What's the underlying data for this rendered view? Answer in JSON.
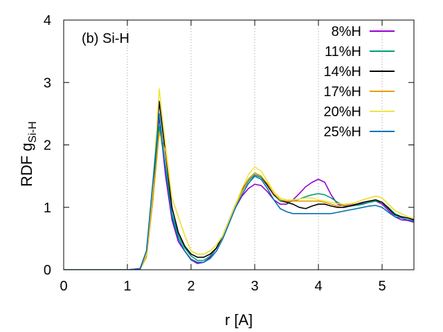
{
  "chart_data": {
    "type": "line",
    "xlabel": "r  [A]",
    "ylabel_main": "RDF  g",
    "ylabel_sub": "Si-H",
    "annotation": "(b) Si-H",
    "xlim": [
      0,
      5.5
    ],
    "ylim": [
      0,
      4
    ],
    "x_ticks": [
      0,
      1,
      2,
      3,
      4,
      5
    ],
    "y_ticks": [
      0,
      1,
      2,
      3,
      4
    ],
    "x_tick_labels": [
      "0",
      "1",
      "2",
      "3",
      "4",
      "5"
    ],
    "y_tick_labels": [
      "0",
      "1",
      "2",
      "3",
      "4"
    ],
    "vertical_gridlines_at": [
      1,
      2,
      3,
      4,
      5
    ],
    "legend_position": "top-right",
    "series": [
      {
        "name": "8%H",
        "color": "#9400d3",
        "x": [
          0,
          1.0,
          1.2,
          1.3,
          1.4,
          1.5,
          1.6,
          1.7,
          1.8,
          1.9,
          2.0,
          2.1,
          2.2,
          2.3,
          2.4,
          2.5,
          2.6,
          2.7,
          2.8,
          2.9,
          3.0,
          3.1,
          3.2,
          3.3,
          3.4,
          3.5,
          3.6,
          3.7,
          3.8,
          3.9,
          4.0,
          4.1,
          4.2,
          4.3,
          4.4,
          4.5,
          4.6,
          4.7,
          4.8,
          4.9,
          5.0,
          5.1,
          5.2,
          5.3,
          5.4,
          5.5
        ],
        "y": [
          0,
          0,
          0.02,
          0.3,
          1.3,
          2.45,
          1.5,
          0.8,
          0.45,
          0.3,
          0.16,
          0.1,
          0.12,
          0.2,
          0.35,
          0.55,
          0.78,
          1.0,
          1.18,
          1.3,
          1.37,
          1.35,
          1.25,
          1.12,
          1.05,
          1.05,
          1.12,
          1.22,
          1.33,
          1.4,
          1.45,
          1.4,
          1.2,
          1.05,
          1.02,
          1.03,
          1.05,
          1.06,
          1.08,
          1.1,
          1.05,
          0.95,
          0.85,
          0.8,
          0.79,
          0.76
        ]
      },
      {
        "name": "11%H",
        "color": "#009e73",
        "x": [
          0,
          1.0,
          1.2,
          1.3,
          1.4,
          1.5,
          1.6,
          1.7,
          1.8,
          1.9,
          2.0,
          2.1,
          2.2,
          2.3,
          2.4,
          2.5,
          2.6,
          2.7,
          2.8,
          2.9,
          3.0,
          3.1,
          3.2,
          3.3,
          3.4,
          3.5,
          3.6,
          3.7,
          3.8,
          3.9,
          4.0,
          4.1,
          4.2,
          4.3,
          4.4,
          4.5,
          4.6,
          4.7,
          4.8,
          4.9,
          5.0,
          5.1,
          5.2,
          5.3,
          5.4,
          5.5
        ],
        "y": [
          0,
          0,
          0.01,
          0.25,
          1.2,
          2.3,
          1.65,
          0.9,
          0.55,
          0.35,
          0.22,
          0.15,
          0.15,
          0.22,
          0.35,
          0.55,
          0.8,
          1.05,
          1.25,
          1.42,
          1.52,
          1.48,
          1.35,
          1.2,
          1.1,
          1.08,
          1.1,
          1.13,
          1.17,
          1.2,
          1.22,
          1.2,
          1.15,
          1.08,
          1.03,
          1.02,
          1.03,
          1.05,
          1.08,
          1.1,
          1.08,
          1.0,
          0.9,
          0.85,
          0.83,
          0.8
        ]
      },
      {
        "name": "14%H",
        "color": "#000000",
        "x": [
          0,
          1.0,
          1.2,
          1.3,
          1.4,
          1.5,
          1.6,
          1.7,
          1.8,
          1.9,
          2.0,
          2.1,
          2.2,
          2.3,
          2.4,
          2.5,
          2.6,
          2.7,
          2.8,
          2.9,
          3.0,
          3.1,
          3.2,
          3.3,
          3.4,
          3.5,
          3.6,
          3.7,
          3.8,
          3.9,
          4.0,
          4.1,
          4.2,
          4.3,
          4.4,
          4.5,
          4.6,
          4.7,
          4.8,
          4.9,
          5.0,
          5.1,
          5.2,
          5.3,
          5.4,
          5.5
        ],
        "y": [
          0,
          0,
          0.01,
          0.25,
          1.3,
          2.7,
          1.85,
          1.0,
          0.6,
          0.38,
          0.25,
          0.2,
          0.2,
          0.25,
          0.35,
          0.55,
          0.8,
          1.05,
          1.27,
          1.45,
          1.55,
          1.5,
          1.35,
          1.2,
          1.12,
          1.08,
          1.05,
          1.0,
          0.98,
          1.02,
          1.05,
          1.05,
          1.02,
          1.0,
          1.0,
          1.02,
          1.05,
          1.08,
          1.1,
          1.12,
          1.08,
          0.98,
          0.88,
          0.85,
          0.83,
          0.8
        ]
      },
      {
        "name": "17%H",
        "color": "#e69f00",
        "x": [
          0,
          1.0,
          1.2,
          1.3,
          1.4,
          1.5,
          1.6,
          1.7,
          1.8,
          1.9,
          2.0,
          2.1,
          2.2,
          2.3,
          2.4,
          2.5,
          2.6,
          2.7,
          2.8,
          2.9,
          3.0,
          3.1,
          3.2,
          3.3,
          3.4,
          3.5,
          3.6,
          3.7,
          3.8,
          3.9,
          4.0,
          4.1,
          4.2,
          4.3,
          4.4,
          4.5,
          4.6,
          4.7,
          4.8,
          4.9,
          5.0,
          5.1,
          5.2,
          5.3,
          5.4,
          5.5
        ],
        "y": [
          0,
          0,
          0.01,
          0.2,
          1.1,
          2.2,
          1.9,
          1.15,
          0.85,
          0.55,
          0.3,
          0.25,
          0.25,
          0.3,
          0.4,
          0.55,
          0.78,
          1.02,
          1.25,
          1.45,
          1.55,
          1.5,
          1.38,
          1.22,
          1.12,
          1.1,
          1.1,
          1.1,
          1.1,
          1.1,
          1.1,
          1.08,
          1.05,
          1.02,
          1.03,
          1.05,
          1.08,
          1.12,
          1.15,
          1.18,
          1.15,
          1.05,
          0.95,
          0.9,
          0.85,
          0.82
        ]
      },
      {
        "name": "20%H",
        "color": "#f0e442",
        "x": [
          0,
          1.0,
          1.2,
          1.3,
          1.4,
          1.5,
          1.6,
          1.7,
          1.8,
          1.9,
          2.0,
          2.1,
          2.2,
          2.3,
          2.4,
          2.5,
          2.6,
          2.7,
          2.8,
          2.9,
          3.0,
          3.1,
          3.2,
          3.3,
          3.4,
          3.5,
          3.6,
          3.7,
          3.8,
          3.9,
          4.0,
          4.1,
          4.2,
          4.3,
          4.4,
          4.5,
          4.6,
          4.7,
          4.8,
          4.9,
          5.0,
          5.1,
          5.2,
          5.3,
          5.4,
          5.5
        ],
        "y": [
          0,
          0,
          0.01,
          0.25,
          1.3,
          2.9,
          2.0,
          1.15,
          0.85,
          0.55,
          0.3,
          0.25,
          0.25,
          0.3,
          0.4,
          0.55,
          0.8,
          1.05,
          1.3,
          1.52,
          1.65,
          1.58,
          1.42,
          1.25,
          1.15,
          1.12,
          1.12,
          1.13,
          1.15,
          1.15,
          1.12,
          1.1,
          1.08,
          1.06,
          1.05,
          1.06,
          1.08,
          1.12,
          1.15,
          1.18,
          1.15,
          1.05,
          0.95,
          0.9,
          0.85,
          0.82
        ]
      },
      {
        "name": "25%H",
        "color": "#0072b2",
        "x": [
          0,
          1.0,
          1.2,
          1.3,
          1.4,
          1.5,
          1.6,
          1.7,
          1.8,
          1.9,
          2.0,
          2.1,
          2.2,
          2.3,
          2.4,
          2.5,
          2.6,
          2.7,
          2.8,
          2.9,
          3.0,
          3.1,
          3.2,
          3.3,
          3.4,
          3.5,
          3.6,
          3.7,
          3.8,
          3.9,
          4.0,
          4.1,
          4.2,
          4.3,
          4.4,
          4.5,
          4.6,
          4.7,
          4.8,
          4.9,
          5.0,
          5.1,
          5.2,
          5.3,
          5.4,
          5.5
        ],
        "y": [
          0,
          0,
          0.01,
          0.3,
          1.4,
          2.5,
          1.6,
          0.85,
          0.5,
          0.3,
          0.17,
          0.12,
          0.12,
          0.18,
          0.3,
          0.5,
          0.75,
          1.0,
          1.2,
          1.38,
          1.5,
          1.45,
          1.3,
          1.12,
          0.98,
          0.93,
          0.9,
          0.9,
          0.9,
          0.9,
          0.9,
          0.9,
          0.9,
          0.92,
          0.94,
          0.96,
          0.98,
          1.0,
          1.02,
          1.03,
          1.0,
          0.92,
          0.85,
          0.83,
          0.8,
          0.78
        ]
      }
    ]
  }
}
